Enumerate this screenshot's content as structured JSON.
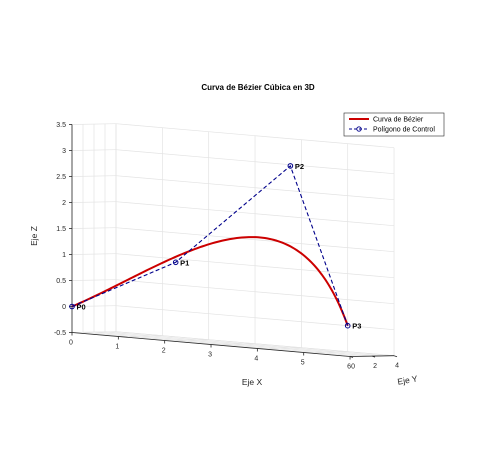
{
  "chart_data": {
    "type": "line",
    "title": "Curva de Bézier Cúbica en 3D",
    "xlabel": "Eje X",
    "ylabel": "Eje Y",
    "zlabel": "Eje Z",
    "xlim": [
      0,
      6
    ],
    "ylim": [
      0,
      4
    ],
    "zlim": [
      -0.5,
      3.5
    ],
    "x_ticks": [
      "0",
      "1",
      "2",
      "3",
      "4",
      "5",
      "6"
    ],
    "y_ticks": [
      "0",
      "2",
      "4"
    ],
    "z_ticks": [
      "-0.5",
      "0",
      "0.5",
      "1",
      "1.5",
      "2",
      "2.5",
      "3",
      "3.5"
    ],
    "grid": true,
    "legend_position": "top-right",
    "control_points": [
      {
        "label": "P0",
        "x": 0,
        "y": 0,
        "z": 0
      },
      {
        "label": "P1",
        "x": 2,
        "y": 1,
        "z": 1
      },
      {
        "label": "P2",
        "x": 4,
        "y": 3,
        "z": 3
      },
      {
        "label": "P3",
        "x": 5,
        "y": 4,
        "z": 0
      }
    ],
    "series": [
      {
        "name": "Curva de Bézier",
        "color": "#cc0000",
        "style": "solid"
      },
      {
        "name": "Polígono de Control",
        "color": "#00008b",
        "style": "dashed-circle-markers"
      }
    ]
  }
}
